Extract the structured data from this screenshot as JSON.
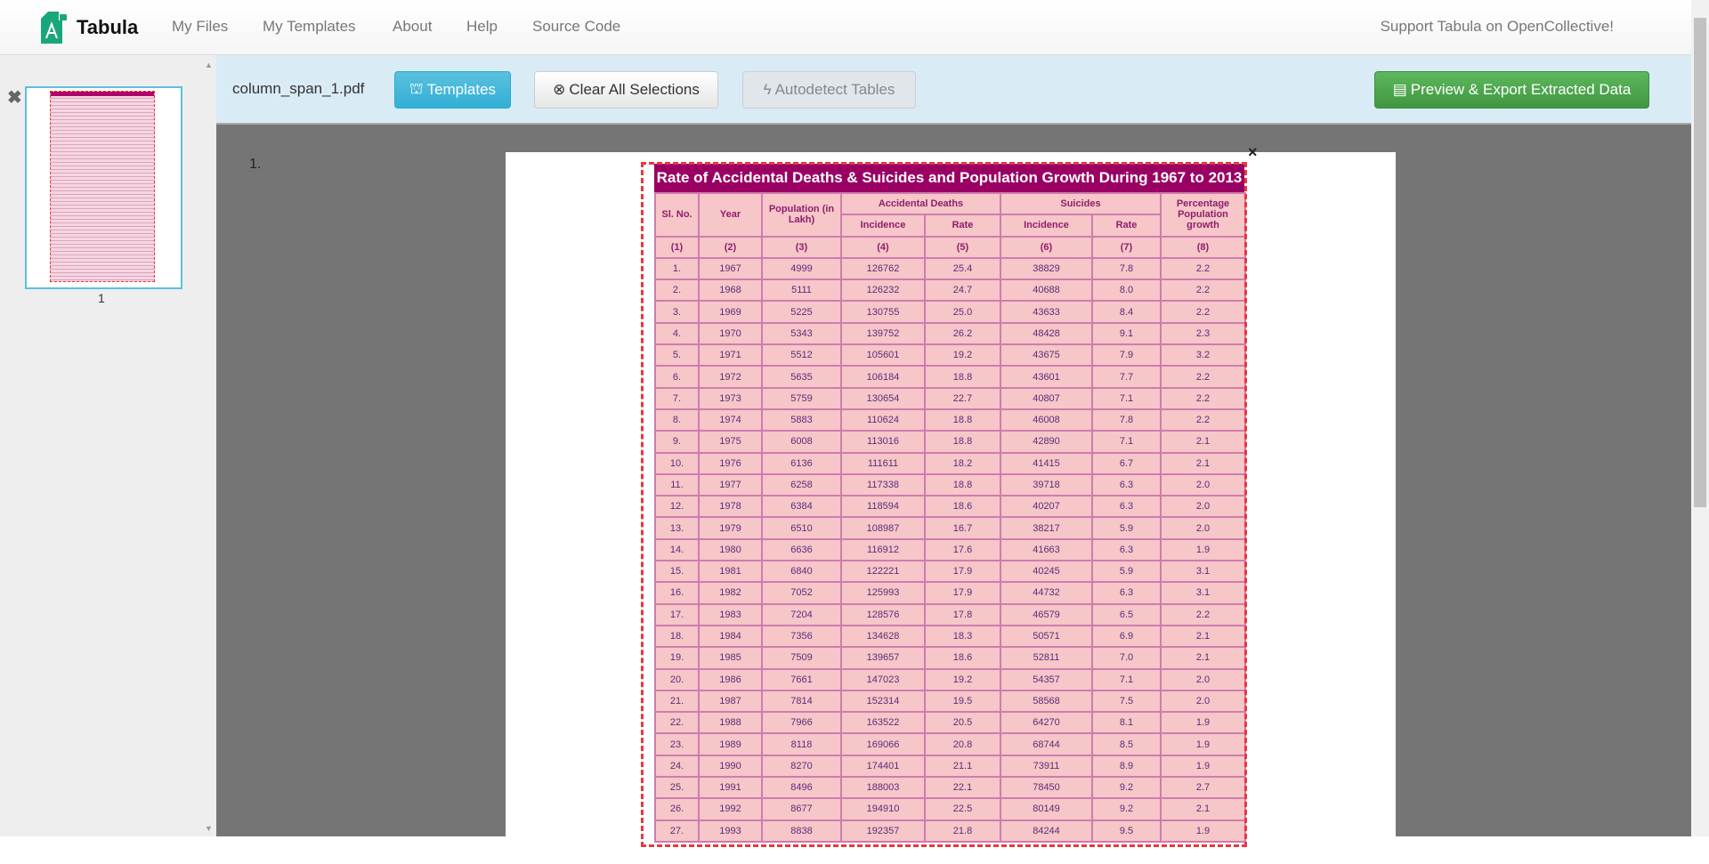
{
  "nav": {
    "brand": "Tabula",
    "links": [
      "My Files",
      "My Templates",
      "About",
      "Help",
      "Source Code"
    ],
    "support": "Support Tabula on OpenCollective!"
  },
  "sidebar": {
    "page_number": "1"
  },
  "toolbar": {
    "filename": "column_span_1.pdf",
    "templates": "Templates",
    "clear": "Clear All Selections",
    "autodetect": "Autodetect Tables",
    "export": "Preview & Export Extracted Data"
  },
  "colors": {
    "accent": "#5bc0de",
    "export": "#5cb85c",
    "selection": "#e8383d",
    "table_title_bg": "#9a0063",
    "table_cell_bg": "#f6c6c8"
  },
  "main": {
    "page_label": "1.",
    "close": "×"
  },
  "table": {
    "title": "Rate of Accidental Deaths & Suicides and Population Growth During 1967 to 2013",
    "headers": {
      "sl": "Sl. No.",
      "year": "Year",
      "population": "Population (in Lakh)",
      "accidental": "Accidental Deaths",
      "suicides": "Suicides",
      "growth": "Percentage Population growth",
      "incidence": "Incidence",
      "rate": "Rate"
    },
    "col_numbers": [
      "(1)",
      "(2)",
      "(3)",
      "(4)",
      "(5)",
      "(6)",
      "(7)",
      "(8)"
    ],
    "rows": [
      [
        "1.",
        "1967",
        "4999",
        "126762",
        "25.4",
        "38829",
        "7.8",
        "2.2"
      ],
      [
        "2.",
        "1968",
        "5111",
        "126232",
        "24.7",
        "40688",
        "8.0",
        "2.2"
      ],
      [
        "3.",
        "1969",
        "5225",
        "130755",
        "25.0",
        "43633",
        "8.4",
        "2.2"
      ],
      [
        "4.",
        "1970",
        "5343",
        "139752",
        "26.2",
        "48428",
        "9.1",
        "2.3"
      ],
      [
        "5.",
        "1971",
        "5512",
        "105601",
        "19.2",
        "43675",
        "7.9",
        "3.2"
      ],
      [
        "6.",
        "1972",
        "5635",
        "106184",
        "18.8",
        "43601",
        "7.7",
        "2.2"
      ],
      [
        "7.",
        "1973",
        "5759",
        "130654",
        "22.7",
        "40807",
        "7.1",
        "2.2"
      ],
      [
        "8.",
        "1974",
        "5883",
        "110624",
        "18.8",
        "46008",
        "7.8",
        "2.2"
      ],
      [
        "9.",
        "1975",
        "6008",
        "113016",
        "18.8",
        "42890",
        "7.1",
        "2.1"
      ],
      [
        "10.",
        "1976",
        "6136",
        "111611",
        "18.2",
        "41415",
        "6.7",
        "2.1"
      ],
      [
        "11.",
        "1977",
        "6258",
        "117338",
        "18.8",
        "39718",
        "6.3",
        "2.0"
      ],
      [
        "12.",
        "1978",
        "6384",
        "118594",
        "18.6",
        "40207",
        "6.3",
        "2.0"
      ],
      [
        "13.",
        "1979",
        "6510",
        "108987",
        "16.7",
        "38217",
        "5.9",
        "2.0"
      ],
      [
        "14.",
        "1980",
        "6636",
        "116912",
        "17.6",
        "41663",
        "6.3",
        "1.9"
      ],
      [
        "15.",
        "1981",
        "6840",
        "122221",
        "17.9",
        "40245",
        "5.9",
        "3.1"
      ],
      [
        "16.",
        "1982",
        "7052",
        "125993",
        "17.9",
        "44732",
        "6.3",
        "3.1"
      ],
      [
        "17.",
        "1983",
        "7204",
        "128576",
        "17.8",
        "46579",
        "6.5",
        "2.2"
      ],
      [
        "18.",
        "1984",
        "7356",
        "134628",
        "18.3",
        "50571",
        "6.9",
        "2.1"
      ],
      [
        "19.",
        "1985",
        "7509",
        "139657",
        "18.6",
        "52811",
        "7.0",
        "2.1"
      ],
      [
        "20.",
        "1986",
        "7661",
        "147023",
        "19.2",
        "54357",
        "7.1",
        "2.0"
      ],
      [
        "21.",
        "1987",
        "7814",
        "152314",
        "19.5",
        "58568",
        "7.5",
        "2.0"
      ],
      [
        "22.",
        "1988",
        "7966",
        "163522",
        "20.5",
        "64270",
        "8.1",
        "1.9"
      ],
      [
        "23.",
        "1989",
        "8118",
        "169066",
        "20.8",
        "68744",
        "8.5",
        "1.9"
      ],
      [
        "24.",
        "1990",
        "8270",
        "174401",
        "21.1",
        "73911",
        "8.9",
        "1.9"
      ],
      [
        "25.",
        "1991",
        "8496",
        "188003",
        "22.1",
        "78450",
        "9.2",
        "2.7"
      ],
      [
        "26.",
        "1992",
        "8677",
        "194910",
        "22.5",
        "80149",
        "9.2",
        "2.1"
      ],
      [
        "27.",
        "1993",
        "8838",
        "192357",
        "21.8",
        "84244",
        "9.5",
        "1.9"
      ]
    ]
  }
}
